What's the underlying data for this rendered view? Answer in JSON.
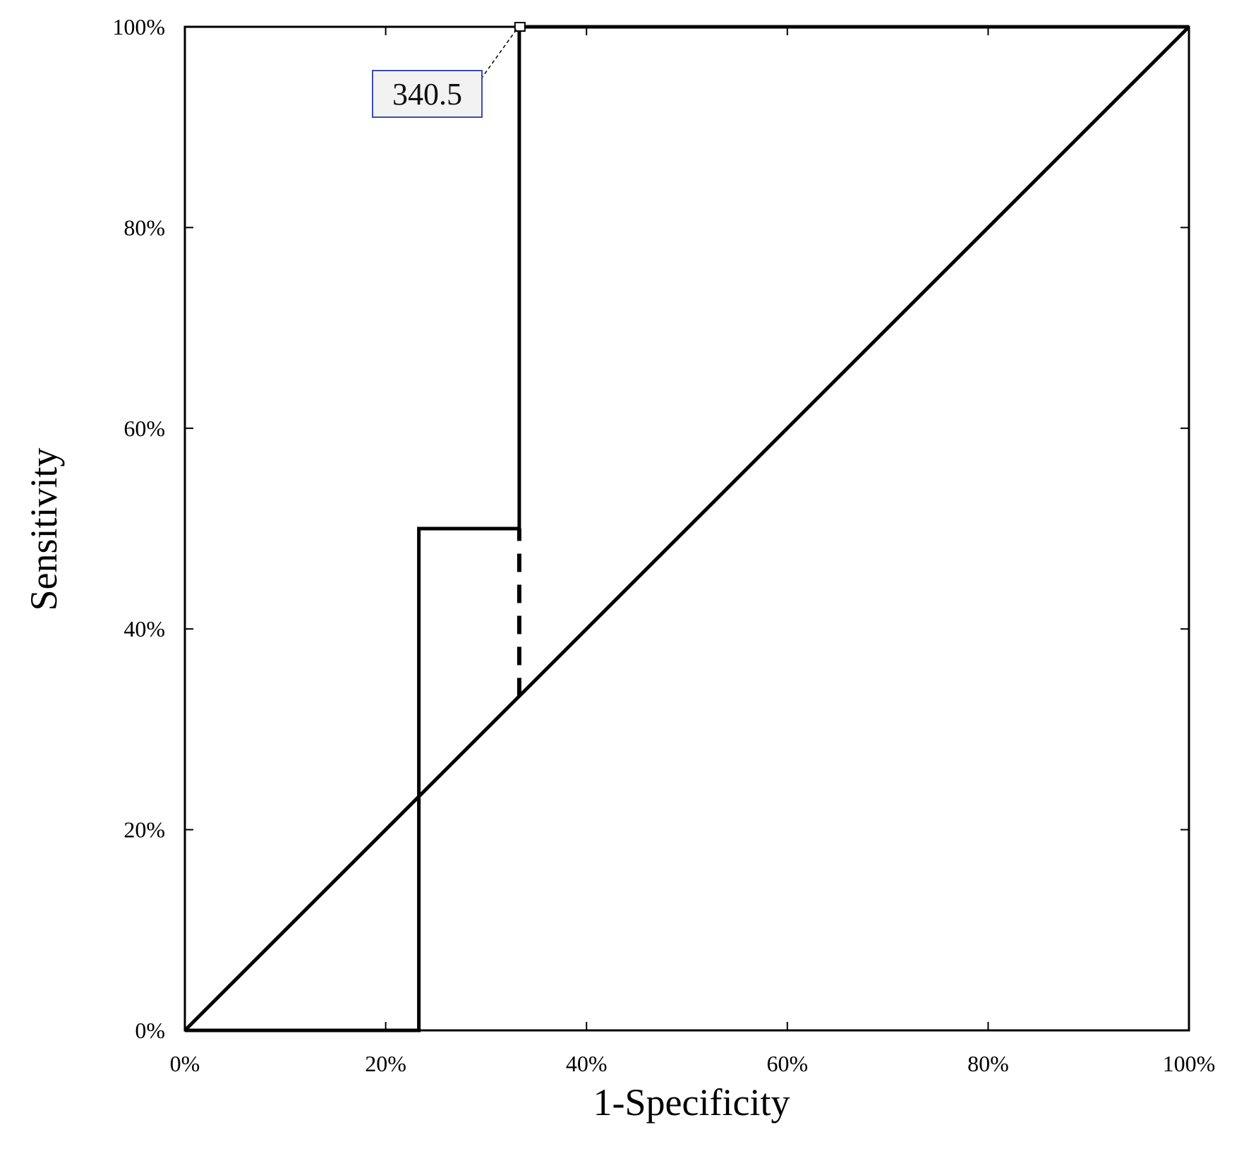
{
  "chart_data": {
    "type": "line",
    "title": "",
    "xlabel": "1-Specificity",
    "ylabel": "Sensitivity",
    "xlim": [
      0,
      100
    ],
    "ylim": [
      0,
      100
    ],
    "x_ticks": [
      "0%",
      "20%",
      "40%",
      "60%",
      "80%",
      "100%"
    ],
    "y_ticks": [
      "0%",
      "20%",
      "40%",
      "60%",
      "80%",
      "100%"
    ],
    "grid": false,
    "legend": "none",
    "series": [
      {
        "style": "solid",
        "points": [
          [
            0,
            0
          ],
          [
            23.3,
            0
          ],
          [
            23.3,
            50
          ],
          [
            33.3,
            50
          ],
          [
            33.3,
            100
          ],
          [
            100,
            100
          ]
        ]
      },
      {
        "style": "solid",
        "points": [
          [
            0,
            0
          ],
          [
            100,
            100
          ]
        ]
      },
      {
        "style": "dashed",
        "points": [
          [
            33.3,
            33.3
          ],
          [
            33.3,
            50
          ]
        ]
      }
    ],
    "annotations": [
      {
        "text": "340.5",
        "x": 33.3,
        "y": 100
      }
    ],
    "colors": {
      "line": "#000000",
      "callout_border": "#3a4fb0",
      "callout_fill": "#f2f2f2"
    }
  }
}
